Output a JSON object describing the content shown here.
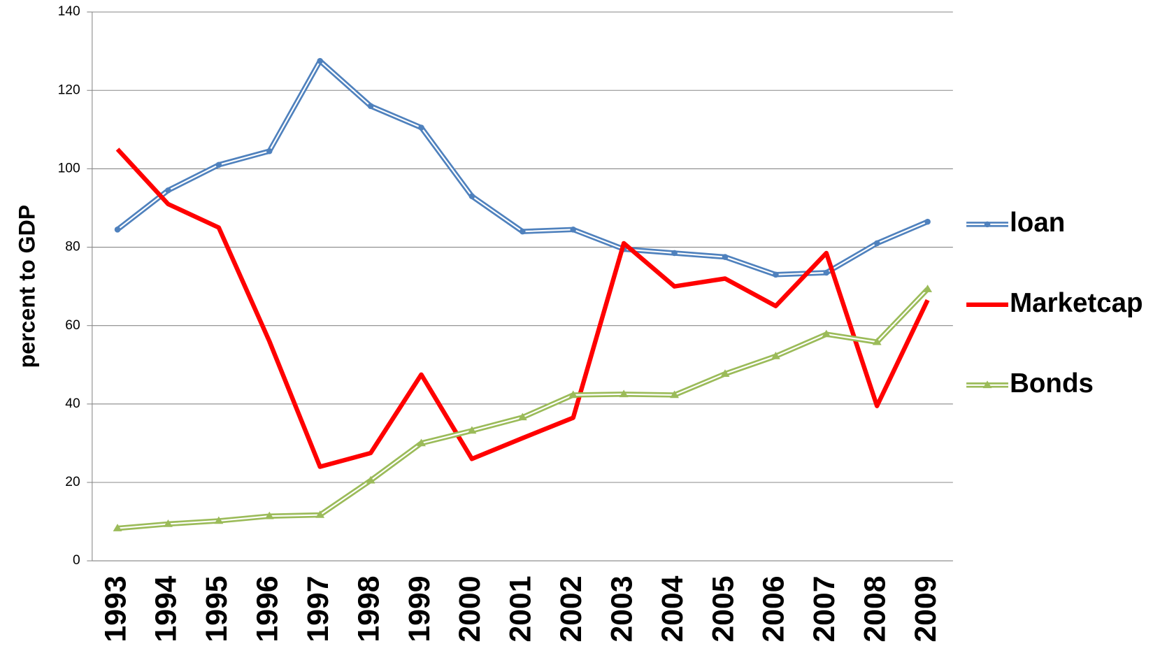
{
  "chart_data": {
    "type": "line",
    "y_label": "percent to GDP",
    "categories": [
      "1993",
      "1994",
      "1995",
      "1996",
      "1997",
      "1998",
      "1999",
      "2000",
      "2001",
      "2002",
      "2003",
      "2004",
      "2005",
      "2006",
      "2007",
      "2008",
      "2009"
    ],
    "series": [
      {
        "name": "loan",
        "color": "#4f81bd",
        "values": [
          84.5,
          94.5,
          101,
          104.5,
          127.5,
          116,
          110.5,
          93,
          84,
          84.5,
          79.5,
          78.5,
          77.5,
          73,
          73.5,
          81,
          86.5
        ]
      },
      {
        "name": "Marketcap",
        "color": "#ff0000",
        "values": [
          105,
          91,
          85,
          56,
          24,
          27.5,
          47.5,
          26,
          31.3,
          36.5,
          81,
          70,
          72,
          65,
          78.5,
          39.5,
          66.5
        ]
      },
      {
        "name": "Bonds",
        "color": "#9bbb59",
        "values": [
          8.3,
          9.4,
          10.2,
          11.4,
          11.7,
          20.5,
          30,
          33.2,
          36.6,
          42.3,
          42.5,
          42.3,
          47.7,
          52.2,
          57.8,
          55.8,
          69.3
        ]
      }
    ],
    "ylim": [
      0,
      140
    ],
    "yticks": [
      0,
      20,
      40,
      60,
      80,
      100,
      120,
      140
    ],
    "grid": true,
    "legend": "right"
  }
}
